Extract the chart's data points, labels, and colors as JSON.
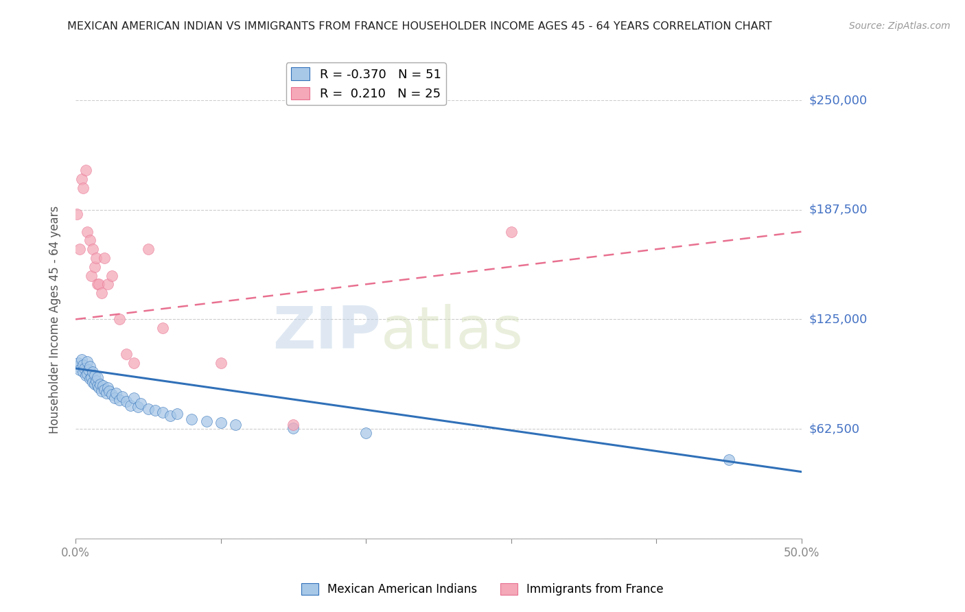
{
  "title": "MEXICAN AMERICAN INDIAN VS IMMIGRANTS FROM FRANCE HOUSEHOLDER INCOME AGES 45 - 64 YEARS CORRELATION CHART",
  "source": "Source: ZipAtlas.com",
  "ylabel": "Householder Income Ages 45 - 64 years",
  "xlim": [
    0.0,
    0.5
  ],
  "ylim": [
    0,
    250000
  ],
  "yticks": [
    0,
    62500,
    125000,
    187500,
    250000
  ],
  "ytick_labels": [
    "",
    "$62,500",
    "$125,000",
    "$187,500",
    "$250,000"
  ],
  "xticks": [
    0.0,
    0.1,
    0.2,
    0.3,
    0.4,
    0.5
  ],
  "xtick_labels": [
    "0.0%",
    "",
    "",
    "",
    "",
    "50.0%"
  ],
  "blue_R": -0.37,
  "blue_N": 51,
  "pink_R": 0.21,
  "pink_N": 25,
  "blue_color": "#a8c8e8",
  "pink_color": "#f4a8b8",
  "blue_line_color": "#3070b8",
  "pink_line_color": "#e87090",
  "title_color": "#222222",
  "axis_label_color": "#555555",
  "tick_label_color": "#4472c4",
  "grid_color": "#cccccc",
  "watermark_zip": "ZIP",
  "watermark_atlas": "atlas",
  "blue_scatter_x": [
    0.001,
    0.002,
    0.003,
    0.004,
    0.005,
    0.005,
    0.006,
    0.007,
    0.008,
    0.008,
    0.009,
    0.01,
    0.01,
    0.011,
    0.012,
    0.012,
    0.013,
    0.013,
    0.014,
    0.015,
    0.015,
    0.016,
    0.017,
    0.018,
    0.019,
    0.02,
    0.021,
    0.022,
    0.023,
    0.025,
    0.027,
    0.028,
    0.03,
    0.032,
    0.035,
    0.038,
    0.04,
    0.043,
    0.045,
    0.05,
    0.055,
    0.06,
    0.065,
    0.07,
    0.08,
    0.09,
    0.1,
    0.11,
    0.15,
    0.2,
    0.45
  ],
  "blue_scatter_y": [
    98000,
    100000,
    96000,
    102000,
    99000,
    95000,
    97000,
    93000,
    101000,
    94000,
    96000,
    91000,
    98000,
    92000,
    89000,
    95000,
    93000,
    88000,
    90000,
    87000,
    92000,
    86000,
    88000,
    84000,
    87000,
    85000,
    83000,
    86000,
    84000,
    82000,
    80000,
    83000,
    79000,
    81000,
    78000,
    76000,
    80000,
    75000,
    77000,
    74000,
    73000,
    72000,
    70000,
    71000,
    68000,
    67000,
    66000,
    65000,
    63000,
    60000,
    45000
  ],
  "pink_scatter_x": [
    0.001,
    0.003,
    0.004,
    0.005,
    0.007,
    0.008,
    0.01,
    0.011,
    0.012,
    0.013,
    0.014,
    0.015,
    0.016,
    0.018,
    0.02,
    0.022,
    0.025,
    0.03,
    0.035,
    0.04,
    0.05,
    0.06,
    0.1,
    0.15,
    0.3
  ],
  "pink_scatter_y": [
    185000,
    165000,
    205000,
    200000,
    210000,
    175000,
    170000,
    150000,
    165000,
    155000,
    160000,
    145000,
    145000,
    140000,
    160000,
    145000,
    150000,
    125000,
    105000,
    100000,
    165000,
    120000,
    100000,
    65000,
    175000
  ],
  "blue_line_x0": 0.0,
  "blue_line_y0": 97000,
  "blue_line_x1": 0.5,
  "blue_line_y1": 38000,
  "pink_line_x0": 0.0,
  "pink_line_y0": 125000,
  "pink_line_x1": 0.5,
  "pink_line_y1": 175000
}
